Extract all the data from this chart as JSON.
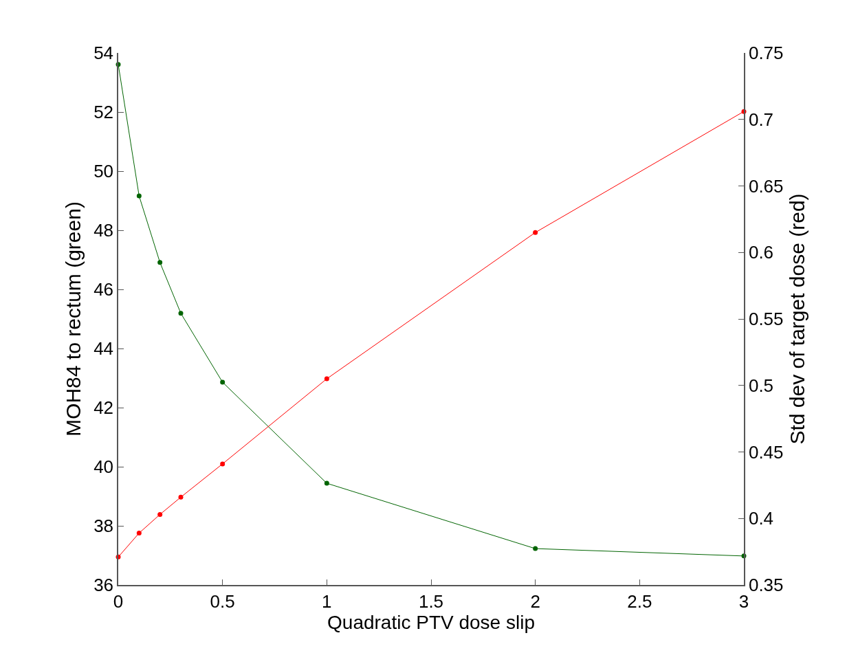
{
  "chart_data": {
    "type": "line",
    "xlabel": "Quadratic PTV dose slip",
    "ylabel": "MOH84 to rectum (green)",
    "y2label": "Std dev of target dose (red)",
    "x": [
      0,
      0.1,
      0.2,
      0.3,
      0.5,
      1,
      2,
      3
    ],
    "series": [
      {
        "color": "#006400",
        "values": [
          53.61,
          49.16,
          46.91,
          45.19,
          42.86,
          39.44,
          37.23,
          36.98
        ]
      },
      {
        "color": "#ff0000",
        "axis": "y2",
        "values": [
          0.371,
          0.389,
          0.403,
          0.416,
          0.441,
          0.505,
          0.615,
          0.706
        ]
      }
    ],
    "xlim": [
      0,
      3
    ],
    "xticks": [
      0,
      0.5,
      1,
      1.5,
      2,
      2.5,
      3
    ],
    "ylim": [
      36,
      54
    ],
    "yticks": [
      36,
      38,
      40,
      42,
      44,
      46,
      48,
      50,
      52,
      54
    ],
    "y2lim": [
      0.35,
      0.75
    ],
    "y2ticks": [
      0.35,
      0.4,
      0.45,
      0.5,
      0.55,
      0.6,
      0.65,
      0.7,
      0.75
    ],
    "grid": false,
    "marker": "circle",
    "line_style": "solid"
  }
}
